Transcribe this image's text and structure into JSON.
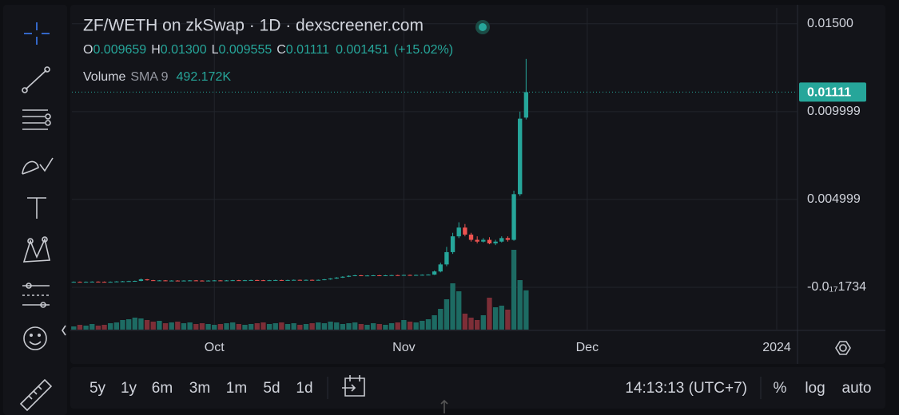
{
  "chart_data": {
    "type": "candlestick",
    "title": "ZF/WETH on zkSwap · 1D · dexscreener.com",
    "ohlc_letters": [
      "O",
      "H",
      "L",
      "C"
    ],
    "ohlc_printed": [
      "0.009659",
      "0.01300",
      "0.009555",
      "0.01111"
    ],
    "change_printed": "0.001451",
    "change_pct_printed": "(+15.02%)",
    "volume_label": "Volume",
    "volume_sma_label": "SMA 9",
    "volume_printed": "492.172K",
    "last_price_printed": "0.01111",
    "up_color": "#26a69a",
    "down_color": "#ef5350",
    "volume_up_color": "#1d6b63",
    "volume_down_color": "#7d2e37",
    "grid": true,
    "open": [
      0.0003,
      0.00031,
      0.0003,
      0.00031,
      0.00032,
      0.00031,
      0.0003,
      0.00031,
      0.00033,
      0.00034,
      0.00035,
      0.00036,
      0.00045,
      0.0004,
      0.00038,
      0.00039,
      0.00037,
      0.00038,
      0.00037,
      0.00038,
      0.00039,
      0.00038,
      0.00037,
      0.00038,
      0.00039,
      0.00038,
      0.00039,
      0.0004,
      0.00039,
      0.0004,
      0.00041,
      0.0004,
      0.00039,
      0.0004,
      0.00041,
      0.0004,
      0.00041,
      0.00042,
      0.00041,
      0.00042,
      0.00041,
      0.00042,
      0.00045,
      0.0005,
      0.00055,
      0.0006,
      0.00065,
      0.00068,
      0.00066,
      0.00067,
      0.00068,
      0.00067,
      0.00068,
      0.00069,
      0.00068,
      0.0007,
      0.00069,
      0.0007,
      0.00071,
      0.00072,
      0.0009,
      0.0013,
      0.002,
      0.0029,
      0.0034,
      0.003,
      0.0027,
      0.0026,
      0.0027,
      0.0025,
      0.0026,
      0.0028,
      0.0027,
      0.0053,
      0.009659
    ],
    "high": [
      0.00033,
      0.00033,
      0.00033,
      0.00034,
      0.00034,
      0.00033,
      0.00033,
      0.00035,
      0.00036,
      0.00037,
      0.00038,
      0.0005,
      0.00047,
      0.00042,
      0.00041,
      0.00041,
      0.0004,
      0.0004,
      0.0004,
      0.00041,
      0.00041,
      0.0004,
      0.0004,
      0.00041,
      0.00041,
      0.00041,
      0.00042,
      0.00042,
      0.00042,
      0.00043,
      0.00043,
      0.00042,
      0.00042,
      0.00043,
      0.00043,
      0.00043,
      0.00044,
      0.00044,
      0.00044,
      0.00044,
      0.00044,
      0.00047,
      0.00052,
      0.00058,
      0.00063,
      0.00068,
      0.00071,
      0.0007,
      0.00069,
      0.0007,
      0.0007,
      0.0007,
      0.00071,
      0.00071,
      0.00072,
      0.00072,
      0.00072,
      0.00073,
      0.00074,
      0.00095,
      0.0014,
      0.0023,
      0.0031,
      0.0037,
      0.0036,
      0.0031,
      0.0029,
      0.0028,
      0.00285,
      0.0027,
      0.0029,
      0.0029,
      0.0055,
      0.01,
      0.013
    ],
    "low": [
      0.00028,
      0.00028,
      0.00028,
      0.00029,
      0.00029,
      0.00028,
      0.00028,
      0.00029,
      0.00031,
      0.00032,
      0.00033,
      0.00034,
      0.00038,
      0.00036,
      0.00036,
      0.00035,
      0.00035,
      0.00035,
      0.00035,
      0.00036,
      0.00036,
      0.00035,
      0.00035,
      0.00036,
      0.00036,
      0.00036,
      0.00037,
      0.00037,
      0.00037,
      0.00038,
      0.00038,
      0.00037,
      0.00037,
      0.00038,
      0.00038,
      0.00038,
      0.00039,
      0.00039,
      0.00039,
      0.00039,
      0.00039,
      0.0004,
      0.00043,
      0.00048,
      0.00053,
      0.00058,
      0.00063,
      0.00064,
      0.00064,
      0.00065,
      0.00065,
      0.00065,
      0.00066,
      0.00066,
      0.00066,
      0.00067,
      0.00067,
      0.00068,
      0.00069,
      0.0007,
      0.00085,
      0.0012,
      0.0019,
      0.0028,
      0.0029,
      0.0026,
      0.0025,
      0.00255,
      0.00245,
      0.0024,
      0.00255,
      0.0026,
      0.00265,
      0.0052,
      0.009555
    ],
    "close": [
      0.00031,
      0.0003,
      0.00031,
      0.00032,
      0.00031,
      0.0003,
      0.00031,
      0.00033,
      0.00034,
      0.00035,
      0.00036,
      0.00045,
      0.0004,
      0.00038,
      0.00039,
      0.00037,
      0.00038,
      0.00037,
      0.00038,
      0.00039,
      0.00038,
      0.00037,
      0.00038,
      0.00039,
      0.00038,
      0.00039,
      0.0004,
      0.00039,
      0.0004,
      0.00041,
      0.0004,
      0.00039,
      0.0004,
      0.00041,
      0.0004,
      0.00041,
      0.00042,
      0.00041,
      0.00042,
      0.00041,
      0.00042,
      0.00045,
      0.0005,
      0.00055,
      0.0006,
      0.00065,
      0.00068,
      0.00066,
      0.00067,
      0.00068,
      0.00067,
      0.00068,
      0.00069,
      0.00068,
      0.0007,
      0.00069,
      0.0007,
      0.00071,
      0.00072,
      0.0009,
      0.0013,
      0.002,
      0.0029,
      0.0034,
      0.003,
      0.0027,
      0.0026,
      0.0027,
      0.0025,
      0.0026,
      0.0028,
      0.0027,
      0.0053,
      0.0096,
      0.01111
    ],
    "volume": [
      40000,
      60000,
      50000,
      70000,
      50000,
      60000,
      80000,
      90000,
      120000,
      130000,
      150000,
      140000,
      120000,
      100000,
      110000,
      80000,
      90000,
      100000,
      80000,
      90000,
      70000,
      80000,
      70000,
      60000,
      70000,
      80000,
      90000,
      70000,
      60000,
      70000,
      80000,
      90000,
      70000,
      80000,
      90000,
      70000,
      80000,
      60000,
      70000,
      80000,
      90000,
      80000,
      100000,
      90000,
      70000,
      80000,
      90000,
      70000,
      60000,
      80000,
      70000,
      60000,
      80000,
      90000,
      120000,
      100000,
      90000,
      110000,
      130000,
      180000,
      260000,
      380000,
      580000,
      480000,
      200000,
      150000,
      120000,
      180000,
      400000,
      280000,
      300000,
      250000,
      1000000,
      620000,
      492172
    ],
    "xlim": [
      -0.3,
      118.4
    ],
    "xticks": [
      {
        "value": 23,
        "label": "Oct"
      },
      {
        "value": 54,
        "label": "Nov"
      },
      {
        "value": 84,
        "label": "Dec"
      },
      {
        "value": 115,
        "label": "2024"
      }
    ],
    "ylim": [
      -0.00241,
      0.0159
    ],
    "yticks": [
      {
        "value": 0.015,
        "label": "0.01500"
      },
      {
        "value": 0.01,
        "label": "0.009999"
      },
      {
        "value": 0.005,
        "label": "0.004999"
      },
      {
        "value": -1.734e-21,
        "label": "-0.0₁₇1734"
      }
    ],
    "volume_ylim": [
      0,
      4030000
    ],
    "timeframes": [
      "5y",
      "1y",
      "6m",
      "3m",
      "1m",
      "5d",
      "1d"
    ],
    "clock": "14:13:13 (UTC+7)",
    "scale_options": [
      "%",
      "log",
      "auto"
    ]
  }
}
